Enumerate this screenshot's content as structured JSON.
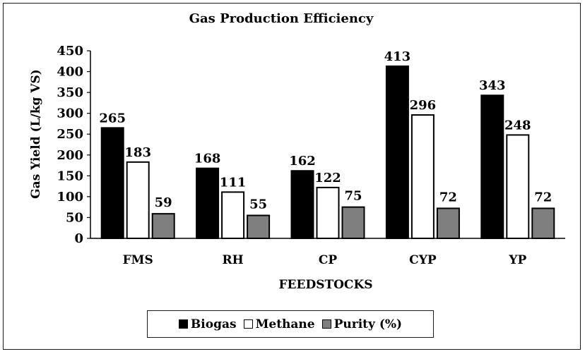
{
  "chart_data": {
    "type": "bar",
    "title": "Gas Production Efficiency",
    "xlabel": "FEEDSTOCKS",
    "ylabel": "Gas Yield (L/kg VS)",
    "categories": [
      "FMS",
      "RH",
      "CP",
      "CYP",
      "YP"
    ],
    "series": [
      {
        "name": "Biogas",
        "values": [
          265,
          168,
          162,
          413,
          343
        ],
        "color": "#000000"
      },
      {
        "name": "Methane",
        "values": [
          183,
          111,
          122,
          296,
          248
        ],
        "color": "#ffffff"
      },
      {
        "name": "Purity (%)",
        "values": [
          59,
          55,
          75,
          72,
          72
        ],
        "color": "#7f7f7f"
      }
    ],
    "ylim": [
      0,
      450
    ],
    "yticks": [
      0,
      50,
      100,
      150,
      200,
      250,
      300,
      350,
      400,
      450
    ],
    "grid": false,
    "legend": "bottom",
    "data_labels": true
  }
}
